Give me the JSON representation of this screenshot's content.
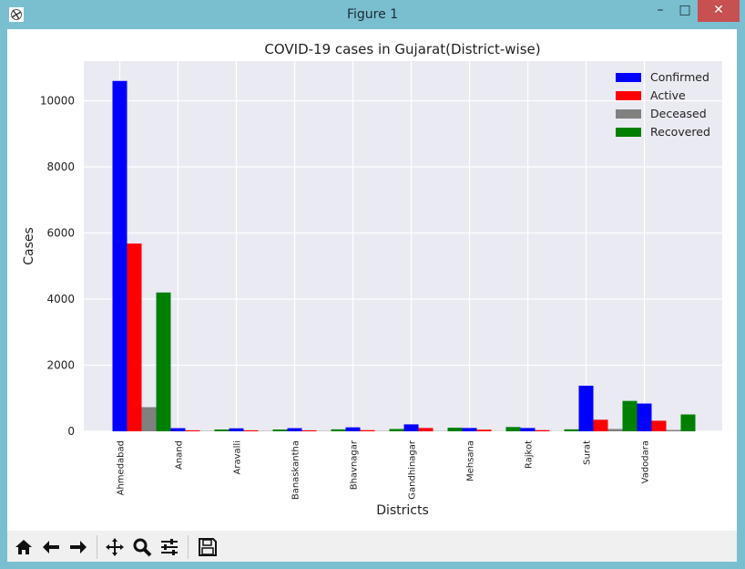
{
  "window": {
    "title": "Figure 1"
  },
  "toolbar": {
    "buttons": [
      "home-icon",
      "back-arrow-icon",
      "forward-arrow-icon",
      "pan-icon",
      "zoom-icon",
      "configure-subplots-icon",
      "save-icon"
    ]
  },
  "colors": {
    "plot_bg": "#eaeaf2",
    "confirmed": "#0000ff",
    "active": "#ff0000",
    "deceased": "#808080",
    "recovered": "#008000"
  },
  "chart_data": {
    "type": "bar",
    "title": "COVID-19 cases in Gujarat(District-wise)",
    "xlabel": "Districts",
    "ylabel": "Cases",
    "ylim": [
      0,
      11200
    ],
    "yticks": [
      "0",
      "2000",
      "4000",
      "6000",
      "8000",
      "10000"
    ],
    "grid": true,
    "legend_position": "top-right",
    "categories": [
      "Ahmedabad",
      "Anand",
      "Aravalli",
      "Banaskantha",
      "Bhavnagar",
      "Gandhinagar",
      "Mehsana",
      "Rajkot",
      "Surat",
      "Vadodara"
    ],
    "series": [
      {
        "name": "Confirmed",
        "color": "#0000ff",
        "values": [
          10600,
          95,
          90,
          95,
          120,
          210,
          100,
          100,
          1380,
          840
        ]
      },
      {
        "name": "Active",
        "color": "#ff0000",
        "values": [
          5680,
          30,
          30,
          30,
          35,
          100,
          50,
          35,
          350,
          320
        ]
      },
      {
        "name": "Deceased",
        "color": "#808080",
        "values": [
          730,
          10,
          10,
          10,
          10,
          8,
          5,
          5,
          70,
          40
        ]
      },
      {
        "name": "Recovered",
        "color": "#008000",
        "values": [
          4200,
          55,
          55,
          60,
          70,
          110,
          130,
          60,
          920,
          510
        ]
      }
    ]
  }
}
